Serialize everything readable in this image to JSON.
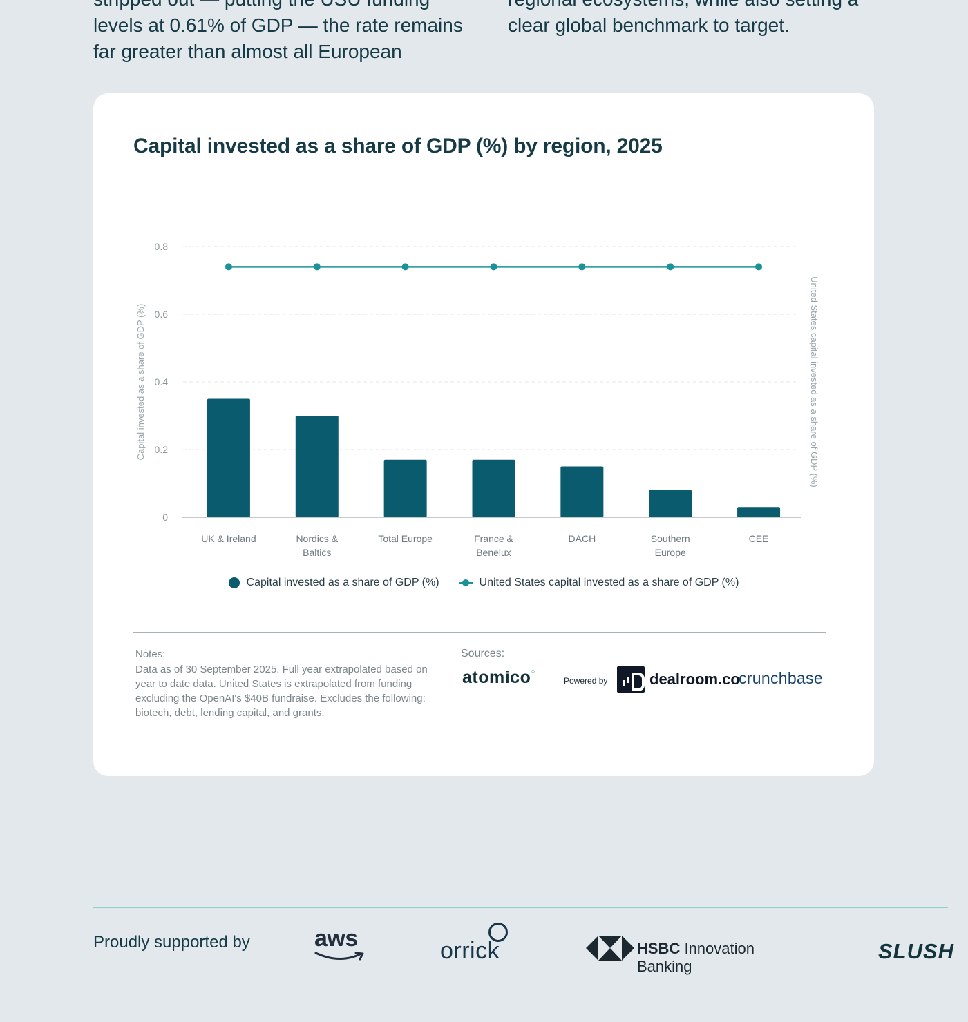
{
  "intro": {
    "left_lines": [
      "stripped out — putting the USU funding",
      "levels at 0.61% of GDP — the rate remains",
      "far greater than almost all European"
    ],
    "right_lines": [
      "regional ecosystems, while also setting a",
      "clear global benchmark to target."
    ]
  },
  "chart_data": {
    "type": "bar",
    "title": "Capital invested as a share of GDP (%) by region, 2025",
    "categories": [
      [
        "UK & Ireland"
      ],
      [
        "Nordics &",
        "Baltics"
      ],
      [
        "Total Europe"
      ],
      [
        "France &",
        "Benelux"
      ],
      [
        "DACH"
      ],
      [
        "Southern",
        "Europe"
      ],
      [
        "CEE"
      ]
    ],
    "series": [
      {
        "name": "Capital invested as a share of GDP (%)",
        "type": "bar",
        "color": "#0a5b6e",
        "values": [
          0.35,
          0.3,
          0.17,
          0.17,
          0.15,
          0.08,
          0.03
        ]
      },
      {
        "name": "United States capital invested as a share of GDP (%)",
        "type": "line",
        "color": "#1a9297",
        "values": [
          0.74,
          0.74,
          0.74,
          0.74,
          0.74,
          0.74,
          0.74
        ]
      }
    ],
    "ylim": [
      0,
      0.8
    ],
    "yticks": [
      "0",
      "0.2",
      "0.4",
      "0.6",
      "0.8"
    ],
    "ylabel": "Capital invested as a share of GDP (%)",
    "ylabel_right": "United States capital invested as a share of GDP (%)",
    "grid": true,
    "legend": "bottom-center"
  },
  "notes": {
    "heading": "Notes:",
    "text": "Data as of 30 September 2025. Full year extrapolated based on year to date data. United States is extrapolated from funding excluding the OpenAI's $40B fundraise. Excludes the following: biotech, debt, lending capital, and grants."
  },
  "sources": {
    "heading": "Sources:",
    "atomico": "atomico",
    "powered_by": "Powered by",
    "dealroom": "dealroom.co",
    "crunchbase": "crunchbase"
  },
  "footer": {
    "supported_by": "Proudly supported by",
    "aws": "aws",
    "orrick": "orrick",
    "hsbc_bold": "HSBC",
    "hsbc_rest": " Innovation Banking",
    "slush": "SLUSH"
  },
  "colors": {
    "bar": "#0a5b6e",
    "line": "#1a9297",
    "background": "#e3e8ec",
    "card": "#ffffff"
  }
}
